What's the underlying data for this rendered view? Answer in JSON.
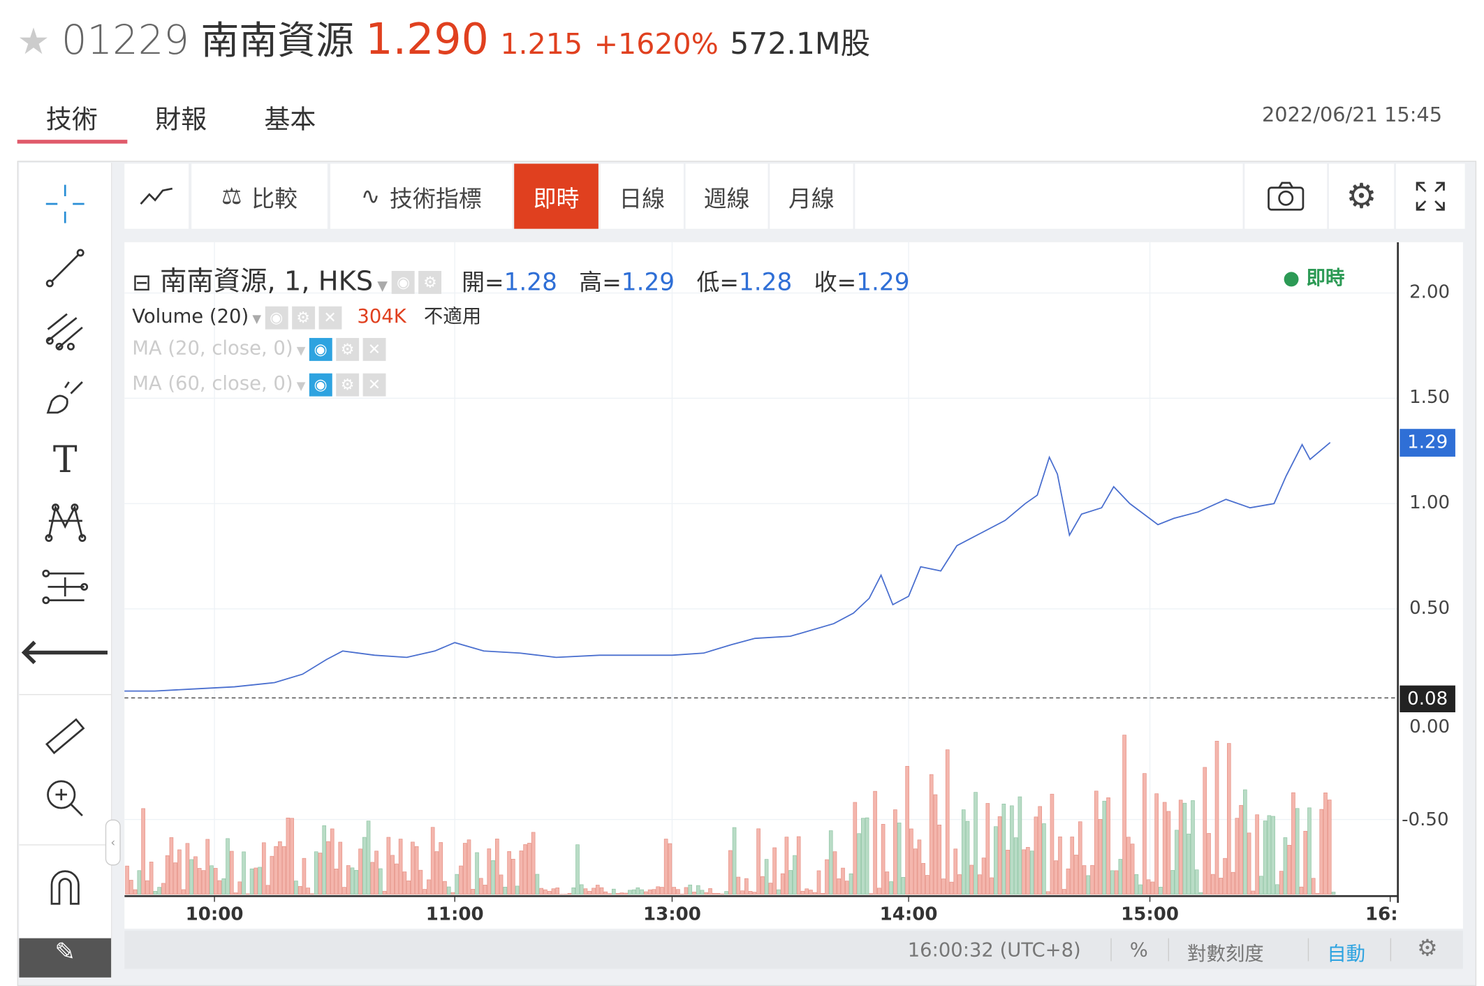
{
  "header": {
    "code": "01229",
    "name": "南南資源",
    "price": "1.290",
    "change": "1.215",
    "change_pct": "+1620%",
    "volume": "572.1M股",
    "price_color": "#e0401f"
  },
  "tabs": [
    {
      "label": "技術",
      "active": true
    },
    {
      "label": "財報"
    },
    {
      "label": "基本"
    }
  ],
  "datetime": "2022/06/21 15:45",
  "toolbar": {
    "compare": "比較",
    "indicators": "技術指標",
    "realtime": "即時",
    "daily": "日線",
    "weekly": "週線",
    "monthly": "月線",
    "active_color": "#e0401f"
  },
  "legend": {
    "symbol": "南南資源, 1, HKS",
    "open_label": "開=",
    "open": "1.28",
    "high_label": "高=",
    "high": "1.29",
    "low_label": "低=",
    "low": "1.28",
    "close_label": "收=",
    "close": "1.29",
    "status": "即時",
    "volume_label": "Volume (20)",
    "volume_value": "304K",
    "volume_na": "不適用",
    "ma1": "MA (20, close, 0)",
    "ma2": "MA (60, close, 0)"
  },
  "left_tools": [
    "crosshair-icon",
    "trend-line-icon",
    "pitchfork-icon",
    "brush-icon",
    "text-icon",
    "pattern-icon",
    "measure-levels-icon",
    "back-arrow-icon",
    "ruler-icon",
    "zoom-in-icon",
    "magnet-icon",
    "lock-drawings-icon"
  ],
  "chart_data": {
    "type": "line",
    "y_ticks": [
      "2.00",
      "1.50",
      "1.00",
      "0.50",
      "0.00",
      "-0.50"
    ],
    "x_ticks": [
      "10:00",
      "11:00",
      "13:00",
      "14:00",
      "15:00",
      "16:"
    ],
    "last_price": "1.29",
    "prev_close": "0.08",
    "series": {
      "x": [
        "09:35",
        "09:45",
        "09:55",
        "10:05",
        "10:15",
        "10:22",
        "10:28",
        "10:32",
        "10:40",
        "10:48",
        "10:55",
        "11:00",
        "11:08",
        "11:18",
        "11:28",
        "11:40",
        "11:55",
        "13:00",
        "13:08",
        "13:15",
        "13:21",
        "13:30",
        "13:41",
        "13:46",
        "13:50",
        "13:53",
        "13:56",
        "14:00",
        "14:03",
        "14:08",
        "14:12",
        "14:18",
        "14:24",
        "14:29",
        "14:32",
        "14:35",
        "14:37",
        "14:40",
        "14:43",
        "14:48",
        "14:51",
        "14:55",
        "15:02",
        "15:06",
        "15:12",
        "15:19",
        "15:25",
        "15:31",
        "15:34",
        "15:38",
        "15:40",
        "15:45"
      ],
      "y": [
        0.11,
        0.11,
        0.12,
        0.13,
        0.15,
        0.19,
        0.26,
        0.3,
        0.28,
        0.27,
        0.3,
        0.34,
        0.3,
        0.29,
        0.27,
        0.28,
        0.28,
        0.28,
        0.29,
        0.33,
        0.36,
        0.37,
        0.43,
        0.48,
        0.55,
        0.66,
        0.52,
        0.56,
        0.7,
        0.68,
        0.8,
        0.86,
        0.92,
        1.0,
        1.04,
        1.22,
        1.14,
        0.85,
        0.95,
        0.98,
        1.08,
        1.0,
        0.9,
        0.93,
        0.96,
        1.02,
        0.98,
        1.0,
        1.13,
        1.28,
        1.21,
        1.29
      ]
    },
    "grid": true
  },
  "footer": {
    "time": "16:00:32 (UTC+8)",
    "percent": "%",
    "log": "對數刻度",
    "auto": "自動"
  }
}
